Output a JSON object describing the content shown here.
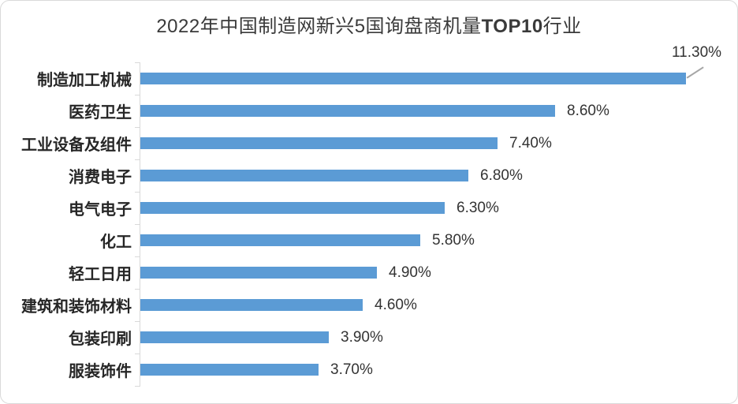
{
  "chart_data": {
    "type": "bar",
    "orientation": "horizontal",
    "title": {
      "prefix": "2022年中国制造网新兴5国询盘商机量",
      "bold": "TOP10",
      "suffix": "行业"
    },
    "categories": [
      "制造加工机械",
      "医药卫生",
      "工业设备及组件",
      "消费电子",
      "电气电子",
      "化工",
      "轻工日用",
      "建筑和装饰材料",
      "包装印刷",
      "服装饰件"
    ],
    "values": [
      11.3,
      8.6,
      7.4,
      6.8,
      6.3,
      5.8,
      4.9,
      4.6,
      3.9,
      3.7
    ],
    "value_labels": [
      "11.30%",
      "8.60%",
      "7.40%",
      "6.80%",
      "6.30%",
      "5.80%",
      "4.90%",
      "4.60%",
      "3.90%",
      "3.70%"
    ],
    "xlim": [
      0,
      12.4
    ],
    "grid": false,
    "legend": false,
    "callout_index": 0,
    "colors": {
      "bar": "#5b9bd5",
      "axis": "#d9d9d9",
      "leader_line": "#a6a6a6",
      "title_text": "#3a3a3a",
      "category_text": "#262626",
      "value_text": "#333333"
    }
  }
}
